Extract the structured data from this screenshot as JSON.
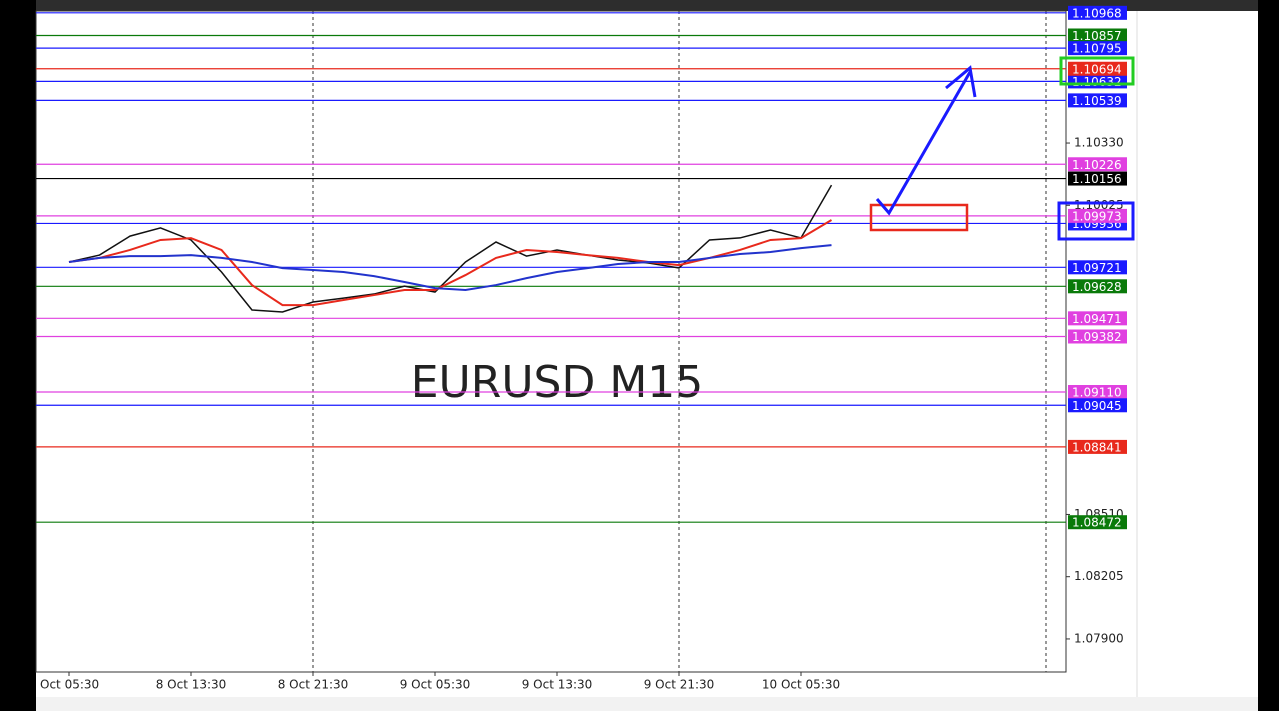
{
  "chart_data": {
    "type": "line",
    "annotation": "EURUSD M15",
    "categories": [
      "Oct 05:30",
      null,
      null,
      null,
      "8 Oct 13:30",
      null,
      null,
      null,
      "8 Oct 21:30",
      null,
      null,
      null,
      "9 Oct 05:30",
      null,
      null,
      null,
      "9 Oct 13:30",
      null,
      null,
      null,
      "9 Oct 21:30",
      null,
      null,
      null,
      "10 Oct 05:30",
      null
    ],
    "series": [
      {
        "color": "#111111",
        "values": [
          1.09747,
          1.09781,
          1.09874,
          1.09914,
          1.09855,
          1.09698,
          1.09512,
          1.09502,
          1.09551,
          1.0957,
          1.0959,
          1.09629,
          1.096,
          1.09747,
          1.09845,
          1.09776,
          1.09806,
          1.09781,
          1.09757,
          1.09742,
          1.09718,
          1.09855,
          1.09865,
          1.09904,
          1.09865,
          1.10124
        ]
      },
      {
        "color": "#e8291c",
        "values": [
          1.09747,
          1.09767,
          1.09806,
          1.09855,
          1.09864,
          1.09806,
          1.09634,
          1.09536,
          1.09536,
          1.09561,
          1.09585,
          1.0961,
          1.0961,
          1.09683,
          1.09767,
          1.09806,
          1.09796,
          1.09781,
          1.09767,
          1.09747,
          1.09732,
          1.09767,
          1.09806,
          1.09855,
          1.09864,
          1.09953
        ]
      },
      {
        "color": "#2233cc",
        "values": [
          1.09747,
          1.09767,
          1.09776,
          1.09776,
          1.09781,
          1.09767,
          1.09747,
          1.09717,
          1.09708,
          1.09698,
          1.09678,
          1.09649,
          1.09619,
          1.0961,
          1.09634,
          1.09668,
          1.09698,
          1.09717,
          1.09737,
          1.09747,
          1.09747,
          1.09767,
          1.09786,
          1.09796,
          1.09815,
          1.0983
        ]
      }
    ],
    "ylim": [
      1.07738,
      1.10977
    ],
    "yticks": [
      {
        "value": 1.079,
        "label": "1.07900"
      },
      1.08205,
      {
        "value": 1.0851,
        "label": "1.08510"
      },
      1.10025,
      {
        "value": 1.1033,
        "label": "1.10330"
      }
    ],
    "levels": [
      {
        "value": 1.10968,
        "label": "1.10968",
        "color": "#1a1aff"
      },
      {
        "value": 1.10857,
        "label": "1.10857",
        "color": "#0a7a0a"
      },
      {
        "value": 1.10795,
        "label": "1.10795",
        "color": "#1a1aff"
      },
      {
        "value": 1.10632,
        "label": "1.10632",
        "color": "#1a1aff"
      },
      {
        "value": 1.10694,
        "label": "1.10694",
        "color": "#e8291c"
      },
      {
        "value": 1.10539,
        "label": "1.10539",
        "color": "#1a1aff"
      },
      {
        "value": 1.10226,
        "label": "1.10226",
        "color": "#e040e0"
      },
      {
        "value": 1.10156,
        "label": "1.10156",
        "color": "#000000"
      },
      {
        "value": 1.09936,
        "label": "1.09936",
        "color": "#1a1aff"
      },
      {
        "value": 1.09973,
        "label": "1.09973",
        "color": "#e040e0"
      },
      {
        "value": 1.09721,
        "label": "1.09721",
        "color": "#1a1aff"
      },
      {
        "value": 1.09628,
        "label": "1.09628",
        "color": "#0a7a0a"
      },
      {
        "value": 1.09471,
        "label": "1.09471",
        "color": "#e040e0"
      },
      {
        "value": 1.09382,
        "label": "1.09382",
        "color": "#e040e0"
      },
      {
        "value": 1.0911,
        "label": "1.09110",
        "color": "#e040e0"
      },
      {
        "value": 1.09045,
        "label": "1.09045",
        "color": "#1a1aff"
      },
      {
        "value": 1.08841,
        "label": "1.08841",
        "color": "#e8291c"
      },
      {
        "value": 1.08472,
        "label": "1.08472",
        "color": "#0a7a0a"
      }
    ]
  }
}
